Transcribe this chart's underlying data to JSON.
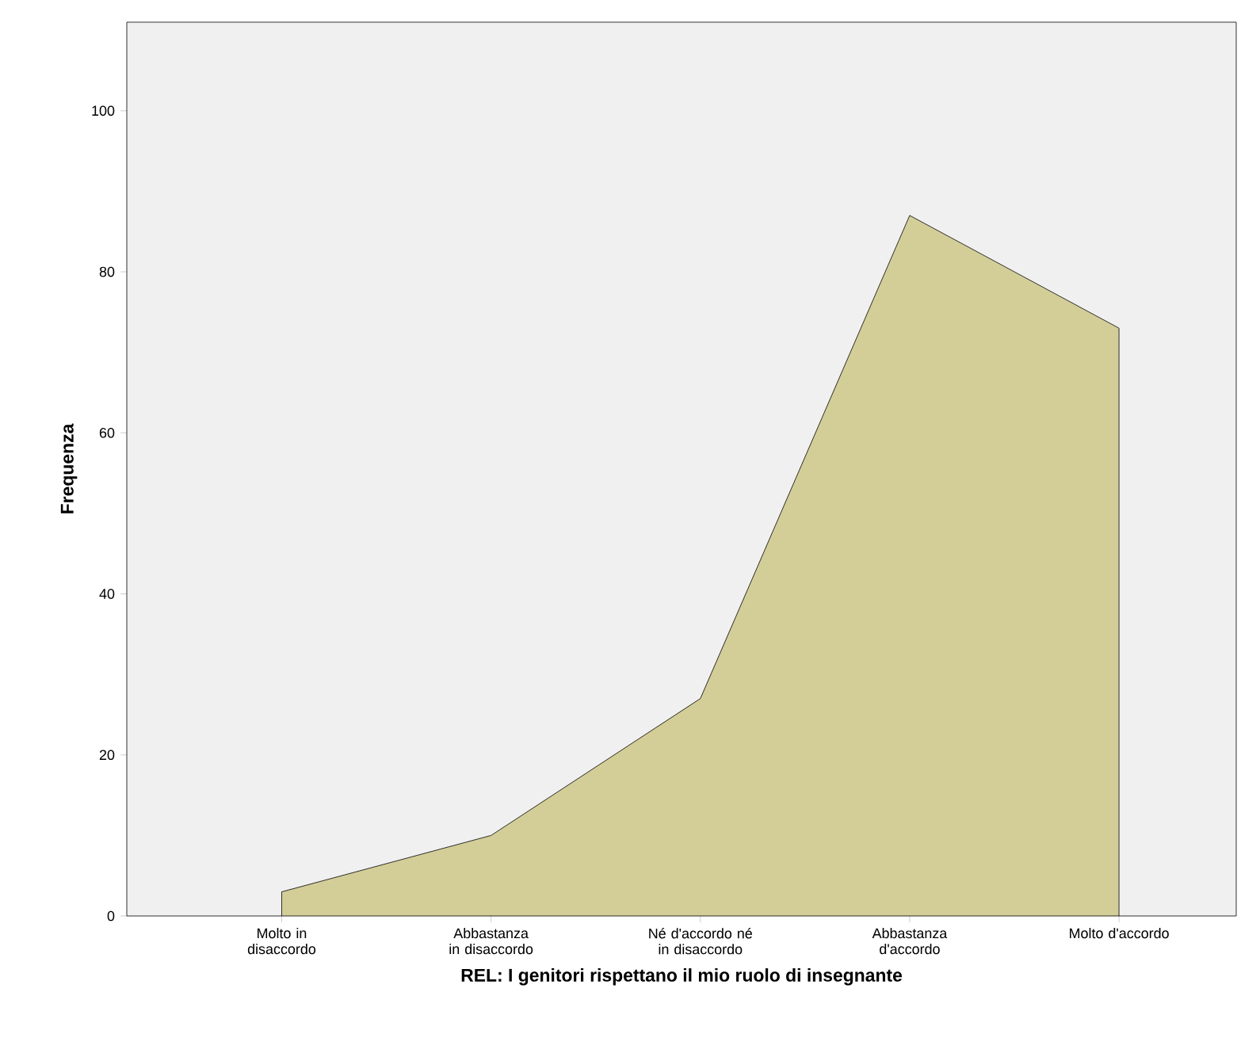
{
  "chart_data": {
    "type": "area",
    "categories": [
      "Molto in disaccordo",
      "Abbastanza in disaccordo",
      "Né d'accordo né in disaccordo",
      "Abbastanza d'accordo",
      "Molto d'accordo"
    ],
    "values": [
      3,
      10,
      27,
      87,
      73
    ],
    "color": "#d3cd98",
    "xlabel": "REL: I genitori rispettano il mio ruolo di insegnante",
    "ylabel": "Frequenza",
    "ylim": [
      0,
      111
    ],
    "yticks": [
      0,
      20,
      40,
      60,
      80,
      100
    ],
    "grid": false
  }
}
